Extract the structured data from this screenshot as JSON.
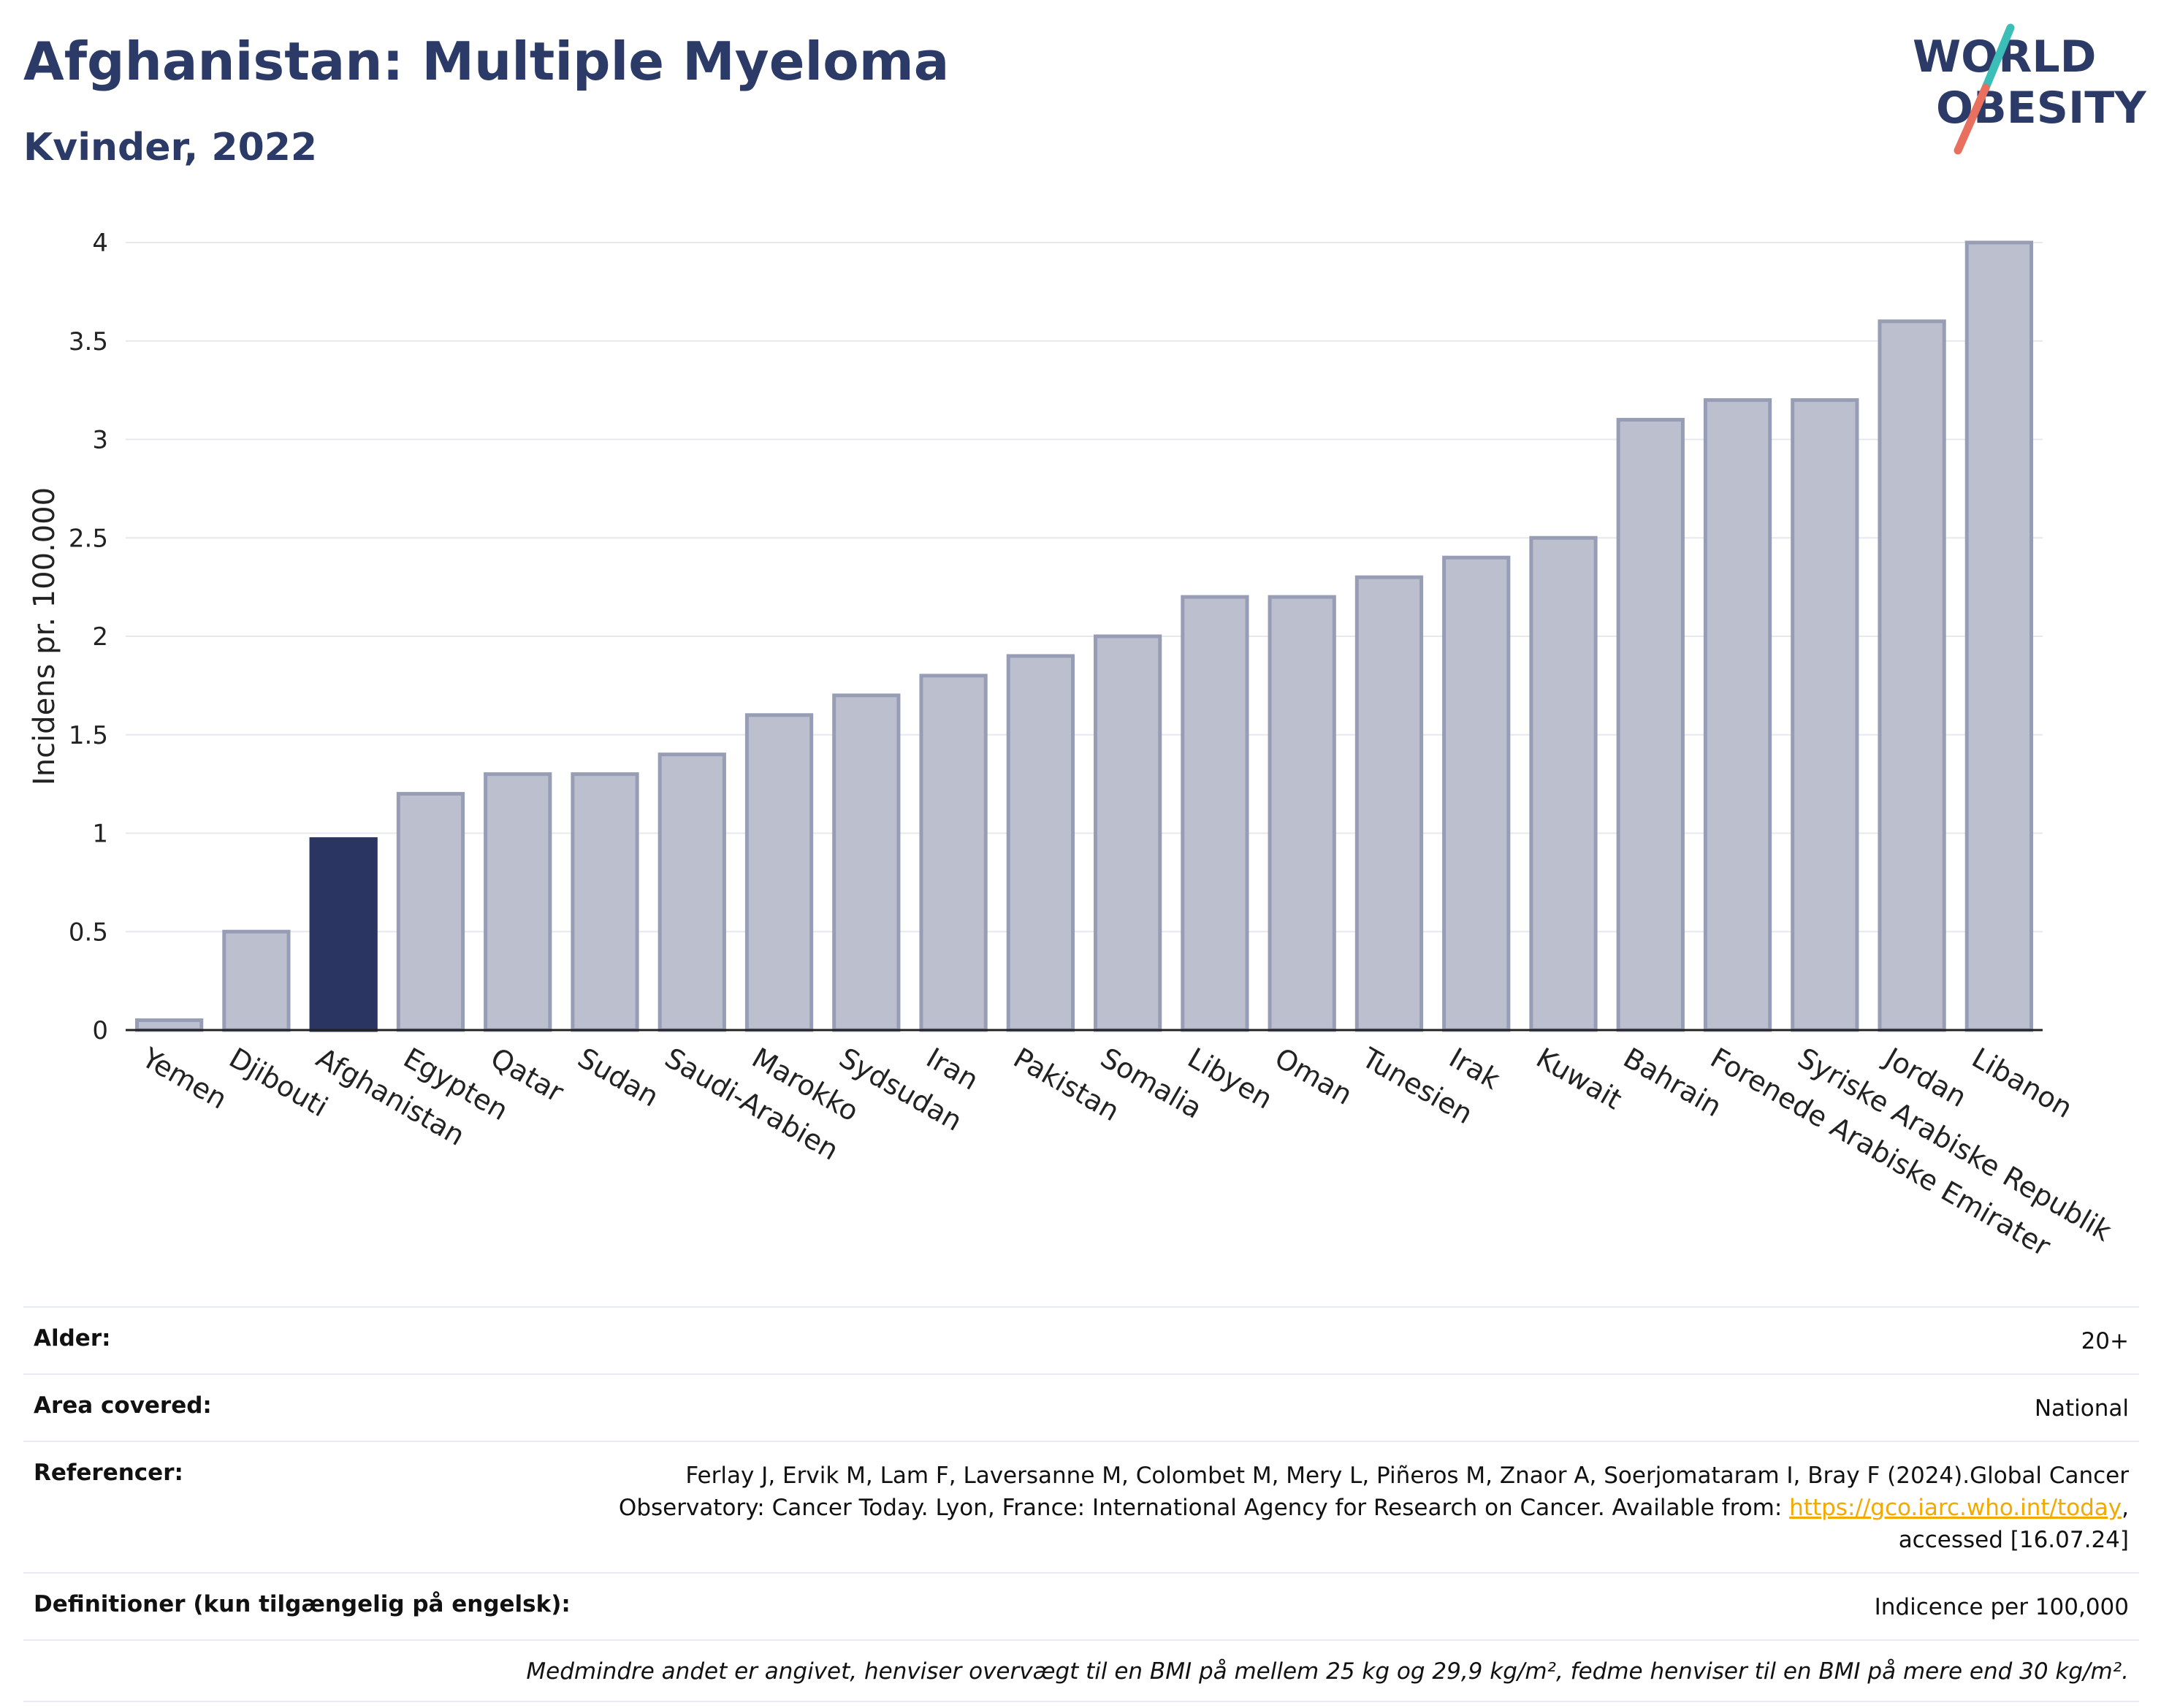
{
  "header": {
    "title": "Afghanistan: Multiple Myeloma",
    "subtitle": "Kvinder, 2022"
  },
  "logo": {
    "line1": "WORLD",
    "line2": "OBESITY",
    "slash_color_top": "#3bbdb8",
    "slash_color_bottom": "#e9705f",
    "text_color": "#2b3a67"
  },
  "colors": {
    "highlight": "#2b3561",
    "bar_fill": "#bcc0ce",
    "bar_stroke": "#979db5",
    "grid": "#e6e8ef",
    "axis": "#222222"
  },
  "chart_data": {
    "type": "bar",
    "ylabel": "Incidens pr. 100.000",
    "ylim": [
      0,
      4
    ],
    "yticks": [
      "0",
      "0.5",
      "1",
      "1.5",
      "2",
      "2.5",
      "3",
      "3.5",
      "4"
    ],
    "categories": [
      "Yemen",
      "Djibouti",
      "Afghanistan",
      "Egypten",
      "Qatar",
      "Sudan",
      "Saudi-Arabien",
      "Marokko",
      "Sydsudan",
      "Iran",
      "Pakistan",
      "Somalia",
      "Libyen",
      "Oman",
      "Tunesien",
      "Irak",
      "Kuwait",
      "Bahrain",
      "Forenede Arabiske Emirater",
      "Syriske Arabiske Republik",
      "Jordan",
      "Libanon"
    ],
    "values": [
      0.05,
      0.5,
      0.97,
      1.2,
      1.3,
      1.3,
      1.4,
      1.6,
      1.7,
      1.8,
      1.9,
      2.0,
      2.2,
      2.2,
      2.3,
      2.4,
      2.5,
      3.1,
      3.2,
      3.2,
      3.6,
      4.0
    ],
    "highlighted": "Afghanistan",
    "grid": true
  },
  "info": {
    "age_label": "Alder:",
    "age_value": "20+",
    "area_label": "Area covered:",
    "area_value": "National",
    "ref_label": "Referencer:",
    "ref_text_1": "Ferlay J, Ervik M, Lam F, Laversanne M, Colombet M, Mery L, Piñeros M, Znaor A, Soerjomataram I, Bray F (2024).Global Cancer Observatory: Cancer Today. Lyon, France: International Agency for Research on Cancer. Available from: ",
    "ref_link": "https://gco.iarc.who.int/today",
    "ref_text_2": ", accessed [16.07.24]",
    "def_label": "Definitioner (kun tilgængelig på engelsk):",
    "def_value": "Indicence per 100,000",
    "note": "Medmindre andet er angivet, henviser overvægt til en BMI på mellem 25 kg og 29,9 kg/m², fedme henviser til en BMI på mere end 30 kg/m²."
  }
}
